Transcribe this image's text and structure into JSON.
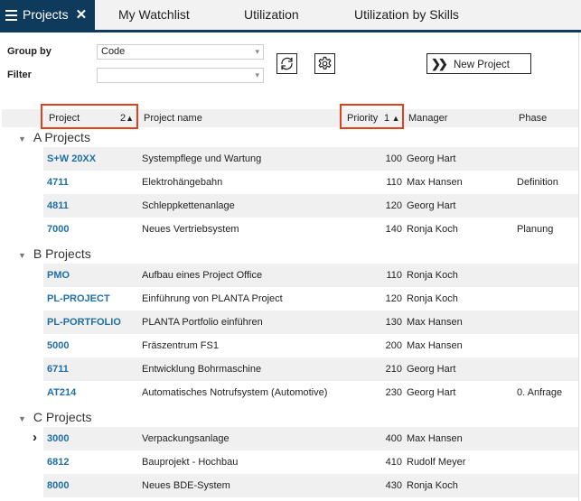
{
  "tabs": [
    {
      "label": "Projects",
      "active": true
    },
    {
      "label": "My Watchlist"
    },
    {
      "label": "Utilization"
    },
    {
      "label": "Utilization by Skills"
    }
  ],
  "toolbar": {
    "group_by_label": "Group by",
    "group_by_value": "Code",
    "filter_label": "Filter",
    "filter_value": "",
    "new_project_label": "New Project",
    "refresh_icon": "refresh-icon",
    "settings_icon": "gear-icon"
  },
  "columns": {
    "project": "Project",
    "project_sort": "2",
    "name": "Project name",
    "priority": "Priority",
    "priority_sort": "1",
    "manager": "Manager",
    "phase": "Phase"
  },
  "accent": "#0e3a5c",
  "highlight": "#e0401a",
  "link": "#1f6fa5",
  "groups": [
    {
      "label": "A Projects",
      "rows": [
        {
          "code": "S+W 20XX",
          "name": "Systempflege und Wartung",
          "priority": "100",
          "manager": "Georg Hart",
          "phase": ""
        },
        {
          "code": "4711",
          "name": "Elektrohängebahn",
          "priority": "110",
          "manager": "Max Hansen",
          "phase": "Definition"
        },
        {
          "code": "4811",
          "name": "Schleppkettenanlage",
          "priority": "120",
          "manager": "Georg Hart",
          "phase": ""
        },
        {
          "code": "7000",
          "name": "Neues Vertriebsystem",
          "priority": "140",
          "manager": "Ronja Koch",
          "phase": "Planung"
        }
      ]
    },
    {
      "label": "B Projects",
      "rows": [
        {
          "code": "PMO",
          "name": "Aufbau eines Project Office",
          "priority": "110",
          "manager": "Ronja Koch",
          "phase": ""
        },
        {
          "code": "PL-PROJECT",
          "name": "Einführung von PLANTA Project",
          "priority": "120",
          "manager": "Ronja Koch",
          "phase": ""
        },
        {
          "code": "PL-PORTFOLIO",
          "name": "PLANTA Portfolio einführen",
          "priority": "130",
          "manager": "Max Hansen",
          "phase": ""
        },
        {
          "code": "5000",
          "name": "Fräszentrum FS1",
          "priority": "200",
          "manager": "Max Hansen",
          "phase": ""
        },
        {
          "code": "6711",
          "name": "Entwicklung Bohrmaschine",
          "priority": "210",
          "manager": "Georg Hart",
          "phase": ""
        },
        {
          "code": "AT214",
          "name": "Automatisches Notrufsystem (Automotive)",
          "priority": "230",
          "manager": "Georg Hart",
          "phase": "0. Anfrage"
        }
      ]
    },
    {
      "label": "C Projects",
      "rows": [
        {
          "code": "3000",
          "name": "Verpackungsanlage",
          "priority": "400",
          "manager": "Max Hansen",
          "phase": "",
          "expandable": true
        },
        {
          "code": "6812",
          "name": "Bauprojekt - Hochbau",
          "priority": "410",
          "manager": "Rudolf Meyer",
          "phase": ""
        },
        {
          "code": "8000",
          "name": "Neues BDE-System",
          "priority": "430",
          "manager": "Ronja Koch",
          "phase": ""
        }
      ]
    }
  ]
}
